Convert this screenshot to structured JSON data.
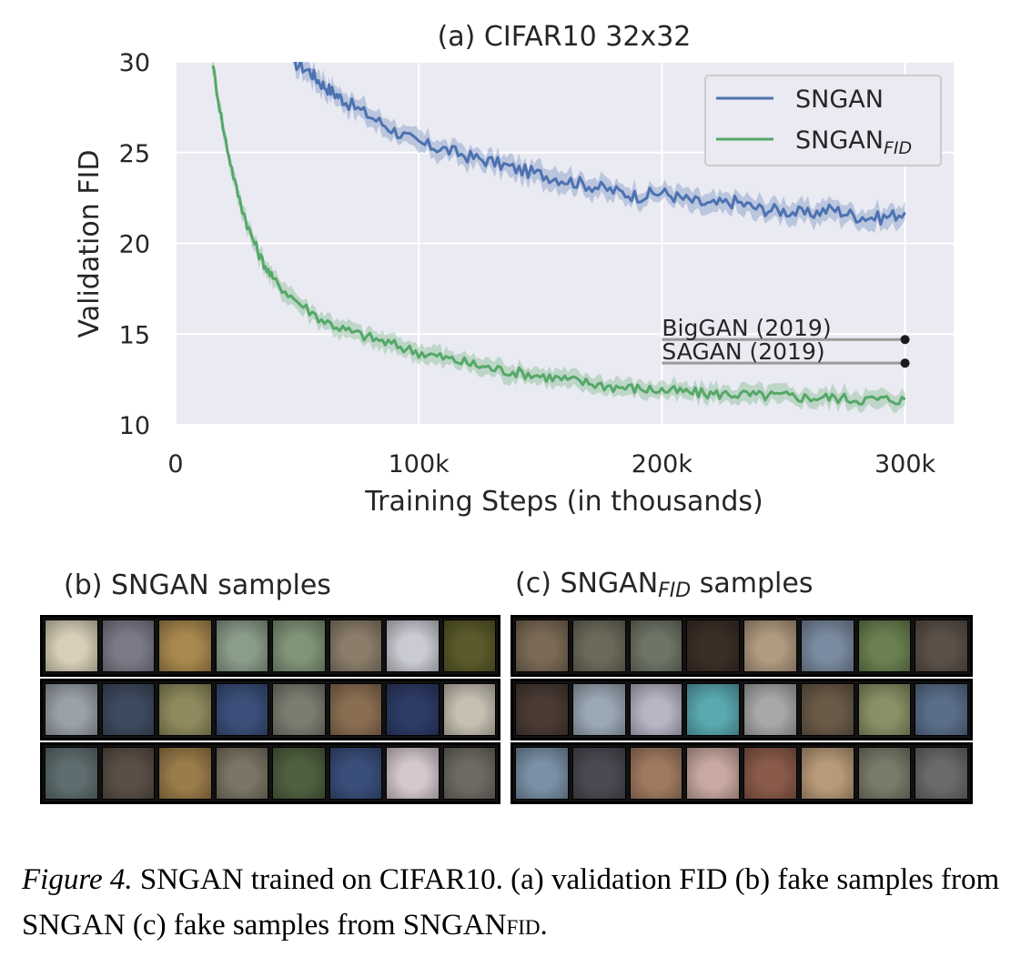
{
  "chart_data": {
    "type": "line",
    "title": "(a) CIFAR10 32x32",
    "xlabel": "Training Steps (in thousands)",
    "ylabel": "Validation FID",
    "xlim": [
      0,
      320000
    ],
    "ylim": [
      10,
      30
    ],
    "xticks": [
      0,
      100000,
      200000,
      300000
    ],
    "xtick_labels": [
      "0",
      "100k",
      "200k",
      "300k"
    ],
    "yticks": [
      10,
      15,
      20,
      25,
      30
    ],
    "ytick_labels": [
      "10",
      "15",
      "20",
      "25",
      "30"
    ],
    "grid": true,
    "legend_position": "top-right",
    "series": [
      {
        "name": "SNGAN",
        "color": "#4c72b0",
        "x": [
          48000,
          55000,
          60000,
          65000,
          70000,
          80000,
          90000,
          100000,
          110000,
          120000,
          130000,
          140000,
          150000,
          160000,
          170000,
          180000,
          190000,
          200000,
          210000,
          220000,
          230000,
          240000,
          250000,
          260000,
          270000,
          280000,
          290000,
          300000
        ],
        "y": [
          30.0,
          29.5,
          28.8,
          28.3,
          27.8,
          27.0,
          26.2,
          25.5,
          25.2,
          24.8,
          24.5,
          24.1,
          23.8,
          23.5,
          23.2,
          22.9,
          22.6,
          22.8,
          22.4,
          22.1,
          22.3,
          21.9,
          21.8,
          21.6,
          21.9,
          21.5,
          21.4,
          21.7
        ],
        "band": 0.6
      },
      {
        "name": "SNGAN_FID",
        "color": "#55a868",
        "x": [
          15000,
          20000,
          25000,
          30000,
          35000,
          40000,
          50000,
          60000,
          70000,
          80000,
          90000,
          100000,
          110000,
          120000,
          130000,
          140000,
          150000,
          160000,
          170000,
          180000,
          190000,
          200000,
          210000,
          220000,
          230000,
          240000,
          250000,
          260000,
          270000,
          280000,
          290000,
          300000
        ],
        "y": [
          30.0,
          26.0,
          23.0,
          20.8,
          19.2,
          18.0,
          16.8,
          15.8,
          15.2,
          14.8,
          14.4,
          14.0,
          13.7,
          13.4,
          13.1,
          12.9,
          12.7,
          12.5,
          12.3,
          12.1,
          12.0,
          11.9,
          11.8,
          11.7,
          11.7,
          11.6,
          11.6,
          11.5,
          11.5,
          11.4,
          11.4,
          11.4
        ],
        "band": 0.5
      }
    ],
    "annotations": [
      {
        "label": "BigGAN (2019)",
        "x_start": 200000,
        "x_end": 300000,
        "y": 14.7
      },
      {
        "label": "SAGAN (2019)",
        "x_start": 200000,
        "x_end": 300000,
        "y": 13.4
      }
    ]
  },
  "legend": {
    "sngan_label": "SNGAN",
    "sngan_fid_base": "SNGAN",
    "sngan_fid_sub": "FID"
  },
  "panels": {
    "b_title": "(b) SNGAN samples",
    "c_title_prefix": "(c) SNGAN",
    "c_title_sub": "FID",
    "c_title_suffix": " samples",
    "b_colors": [
      [
        "#d8cfb8",
        "#7d7a88",
        "#a8884e",
        "#8a9c8a",
        "#7f9478",
        "#8b7d6a",
        "#c9cad2",
        "#5a5a2a"
      ],
      [
        "#9aa1a8",
        "#3e4b5f",
        "#8f8a5e",
        "#3b4f7a",
        "#7c7c70",
        "#8a6e52",
        "#2d3b66",
        "#c6c0b2"
      ],
      [
        "#5e6d6f",
        "#5a4f45",
        "#9a7b4a",
        "#7a7564",
        "#4f6040",
        "#3a4e7a",
        "#d4c8cc",
        "#6e6a62"
      ]
    ],
    "c_colors": [
      [
        "#7a6a55",
        "#6b6a5a",
        "#6e7466",
        "#3b2e26",
        "#b09a80",
        "#7a8aa0",
        "#6a8050",
        "#5a5048"
      ],
      [
        "#4a3a34",
        "#9aa8b4",
        "#b8b4c4",
        "#5aa8b0",
        "#a8a8a8",
        "#6a5a48",
        "#8a9066",
        "#5a6e8a"
      ],
      [
        "#7a90a6",
        "#4a4a52",
        "#a07a60",
        "#c8a8a0",
        "#8a5a4a",
        "#b89a78",
        "#7a7a6a",
        "#6a6a6a"
      ]
    ]
  },
  "caption": {
    "label": "Figure 4.",
    "text_1": " SNGAN trained on CIFAR10. (a) validation FID (b) fake samples from SNGAN (c) fake samples from SNGAN",
    "sub": "FID",
    "text_2": "."
  }
}
